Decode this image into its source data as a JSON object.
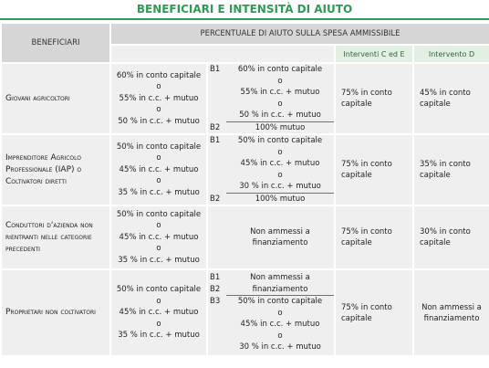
{
  "title": "BENEFICIARI E INTENSITÀ DI AIUTO",
  "header": {
    "beneficiari": "BENEFICIARI",
    "percentuale": "PERCENTUALE DI AIUTO SULLA SPESA AMMISSIBILE",
    "interventi_ce": "Interventi C ed E",
    "intervento_d": "Intervento D"
  },
  "rows": [
    {
      "beneficiary": "Giovani agricoltori",
      "a": [
        "60% in conto capitale",
        "o",
        "55% in c.c. + mutuo",
        "o",
        "50 % in c.c. + mutuo"
      ],
      "b": [
        {
          "label": "B1",
          "lines": [
            "60% in conto capitale",
            "o",
            "55% in c.c. + mutuo",
            "o",
            "50 % in c.c. + mutuo"
          ]
        },
        {
          "label": "B2",
          "lines": [
            "100% mutuo"
          ]
        }
      ],
      "ce": "75% in conto capitale",
      "d": "45% in conto capitale"
    },
    {
      "beneficiary": "Imprenditore Agricolo Professionale (IAP) o Coltivatori diretti",
      "a": [
        "50% in conto capitale",
        "o",
        "45% in c.c. + mutuo",
        "o",
        "35 % in c.c. + mutuo"
      ],
      "b": [
        {
          "label": "B1",
          "lines": [
            "50% in conto capitale",
            "o",
            "45% in c.c. + mutuo",
            "o",
            "30 % in c.c. + mutuo"
          ]
        },
        {
          "label": "B2",
          "lines": [
            "100% mutuo"
          ]
        }
      ],
      "ce": "75% in conto capitale",
      "d": "35% in conto capitale"
    },
    {
      "beneficiary": "Conduttori d'azienda non rientranti nelle categorie precedenti",
      "a": [
        "50% in conto capitale",
        "o",
        "45% in c.c. + mutuo",
        "o",
        "35 % in c.c. + mutuo"
      ],
      "b": [
        {
          "lines": [
            "Non ammessi a",
            "finanziamento"
          ]
        }
      ],
      "ce": "75% in conto capitale",
      "d": "30% in conto capitale"
    },
    {
      "beneficiary": "Proprietari non coltivatori",
      "a": [
        "50% in conto capitale",
        "o",
        "45% in c.c. + mutuo",
        "o",
        "35 % in c.c. + mutuo"
      ],
      "b": [
        {
          "label": "B1",
          "label2": "B2",
          "lines": [
            "Non ammessi a",
            "finanziamento"
          ]
        },
        {
          "label": "B3",
          "lines": [
            "50% in conto capitale",
            "o",
            "45% in c.c. + mutuo",
            "o",
            "30 % in c.c. + mutuo"
          ]
        }
      ],
      "ce": "75% in conto capitale",
      "d": "Non ammessi a finanziamento"
    }
  ]
}
